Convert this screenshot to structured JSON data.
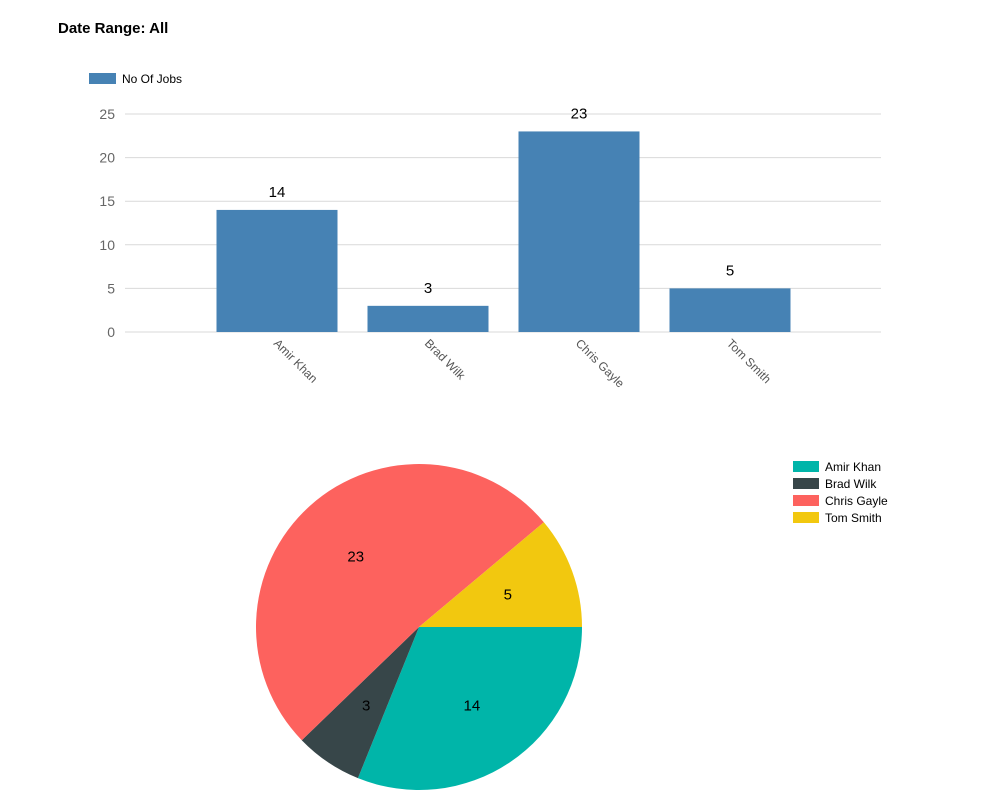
{
  "header": {
    "date_range": "Date Range: All"
  },
  "chart_data": [
    {
      "type": "bar",
      "categories": [
        "Amir Khan",
        "Brad Wilk",
        "Chris Gayle",
        "Tom Smith"
      ],
      "series": [
        {
          "name": "No Of Jobs",
          "values": [
            14,
            3,
            23,
            5
          ],
          "color": "#4682b4"
        }
      ],
      "ylim": [
        0,
        25
      ],
      "yticks": [
        0,
        5,
        10,
        15,
        20,
        25
      ],
      "grid": true,
      "legend": "top-left",
      "data_labels": true
    },
    {
      "type": "pie",
      "labels": [
        "Amir Khan",
        "Brad Wilk",
        "Chris Gayle",
        "Tom Smith"
      ],
      "values": [
        14,
        3,
        23,
        5
      ],
      "colors": [
        "#00b5a9",
        "#374649",
        "#fd625e",
        "#f2c80f"
      ],
      "legend": "top-right",
      "data_labels": true
    }
  ]
}
